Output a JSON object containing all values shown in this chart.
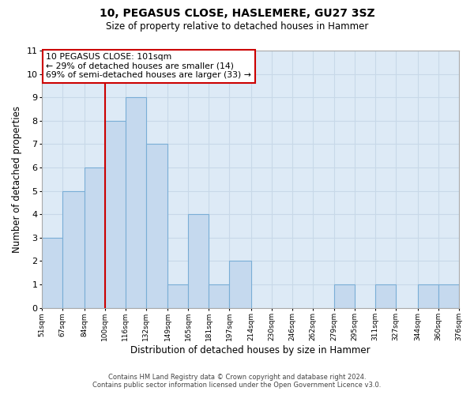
{
  "title": "10, PEGASUS CLOSE, HASLEMERE, GU27 3SZ",
  "subtitle": "Size of property relative to detached houses in Hammer",
  "xlabel": "Distribution of detached houses by size in Hammer",
  "ylabel": "Number of detached properties",
  "bin_edges": [
    51,
    67,
    84,
    100,
    116,
    132,
    149,
    165,
    181,
    197,
    214,
    230,
    246,
    262,
    279,
    295,
    311,
    327,
    344,
    360,
    376
  ],
  "counts": [
    3,
    5,
    6,
    8,
    9,
    7,
    1,
    4,
    1,
    2,
    0,
    0,
    0,
    0,
    1,
    0,
    1,
    0,
    1,
    1
  ],
  "bar_color": "#c5d9ee",
  "bar_edge_color": "#7aaed6",
  "vline_x": 100,
  "vline_color": "#cc0000",
  "ylim": [
    0,
    11
  ],
  "yticks": [
    0,
    1,
    2,
    3,
    4,
    5,
    6,
    7,
    8,
    9,
    10,
    11
  ],
  "annotation_title": "10 PEGASUS CLOSE: 101sqm",
  "annotation_line1": "← 29% of detached houses are smaller (14)",
  "annotation_line2": "69% of semi-detached houses are larger (33) →",
  "annotation_box_facecolor": "#ffffff",
  "annotation_border_color": "#cc0000",
  "footer_line1": "Contains HM Land Registry data © Crown copyright and database right 2024.",
  "footer_line2": "Contains public sector information licensed under the Open Government Licence v3.0.",
  "grid_color": "#c8d8e8",
  "background_color": "#ddeaf6"
}
